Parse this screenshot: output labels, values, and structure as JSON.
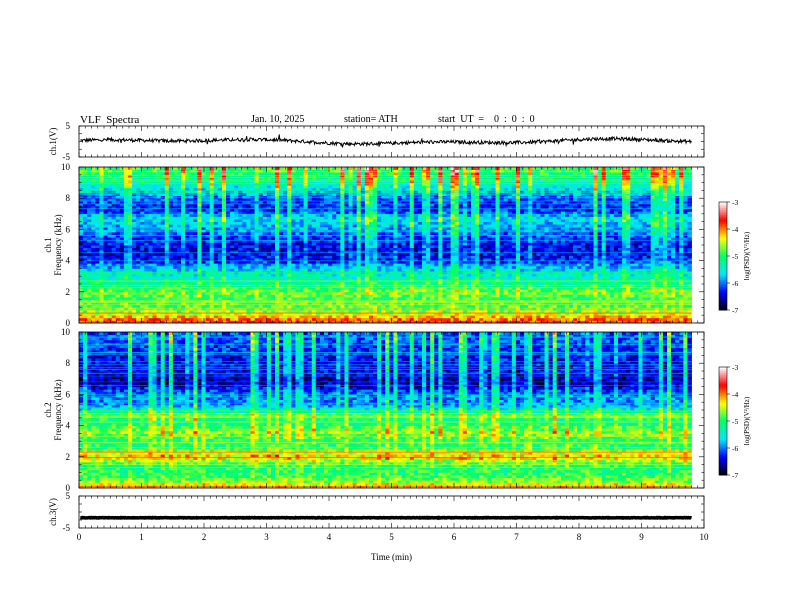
{
  "header": {
    "title": "VLF  Spectra",
    "date": "Jan. 10, 2025",
    "station": "station= ATH",
    "start": "start  UT  =    0  :  0  :  0"
  },
  "chart_data": [
    {
      "id": "ch1",
      "type": "line",
      "ylabel": "ch.1(V)",
      "ylim": [
        -5,
        5
      ],
      "yticks": [
        "5",
        "-5"
      ],
      "xlim": [
        0,
        10
      ],
      "baseline": 0,
      "color": "#000000"
    },
    {
      "id": "spec1",
      "type": "heatmap",
      "ylabel": "ch.1\nFrequency (kHz)",
      "ylabel_lines": [
        "ch.1",
        "Frequency (kHz)"
      ],
      "ylim": [
        0,
        10
      ],
      "yticks": [
        "0",
        "2",
        "4",
        "6",
        "8",
        "10"
      ],
      "xlim": [
        0,
        10
      ],
      "data_end_min": 9.8,
      "colorbar": {
        "label": "log(PSD)(V²/Hz)",
        "range": [
          -7,
          -3
        ],
        "ticks": [
          "-3",
          "-4",
          "-5",
          "-6",
          "-7"
        ],
        "colors": [
          "#000000",
          "#0000ff",
          "#00e5ff",
          "#00ff66",
          "#ffff00",
          "#ff0000",
          "#ffffff"
        ]
      },
      "bands": [
        {
          "f": 0.15,
          "level": -3.8
        },
        {
          "f": 0.4,
          "level": -4.2
        },
        {
          "f": 0.7,
          "level": -4.6
        },
        {
          "f": 1.0,
          "level": -4.8
        },
        {
          "f": 1.5,
          "level": -5.0
        },
        {
          "f": 2.0,
          "level": -4.7
        },
        {
          "f": 2.3,
          "level": -5.0
        },
        {
          "f": 2.9,
          "level": -5.4
        },
        {
          "f": 3.5,
          "level": -5.7
        },
        {
          "f": 4.0,
          "level": -6.3
        },
        {
          "f": 4.7,
          "level": -6.4
        },
        {
          "f": 5.4,
          "level": -6.2
        },
        {
          "f": 6.1,
          "level": -5.9
        },
        {
          "f": 6.7,
          "level": -5.6
        },
        {
          "f": 7.3,
          "level": -6.3
        },
        {
          "f": 8.0,
          "level": -6.1
        },
        {
          "f": 9.0,
          "level": -5.3
        },
        {
          "f": 9.8,
          "level": -4.9
        }
      ]
    },
    {
      "id": "spec2",
      "type": "heatmap",
      "ylabel": "ch.2\nFrequency (kHz)",
      "ylabel_lines": [
        "ch.2",
        "Frequency (kHz)"
      ],
      "ylim": [
        0,
        10
      ],
      "yticks": [
        "0",
        "2",
        "4",
        "6",
        "8",
        "10"
      ],
      "xlim": [
        0,
        10
      ],
      "data_end_min": 9.8,
      "colorbar": {
        "label": "log(PSD)(V²/Hz)",
        "range": [
          -7,
          -3
        ],
        "ticks": [
          "-3",
          "-4",
          "-5",
          "-6",
          "-7"
        ],
        "colors": [
          "#000000",
          "#0000ff",
          "#00e5ff",
          "#00ff66",
          "#ffff00",
          "#ff0000",
          "#ffffff"
        ]
      },
      "bands": [
        {
          "f": 0.2,
          "level": -4.3
        },
        {
          "f": 0.6,
          "level": -4.8
        },
        {
          "f": 1.0,
          "level": -5.0
        },
        {
          "f": 1.5,
          "level": -5.0
        },
        {
          "f": 2.0,
          "level": -4.2
        },
        {
          "f": 2.5,
          "level": -4.9
        },
        {
          "f": 3.0,
          "level": -5.1
        },
        {
          "f": 3.6,
          "level": -4.6
        },
        {
          "f": 4.2,
          "level": -5.2
        },
        {
          "f": 4.7,
          "level": -4.9
        },
        {
          "f": 5.3,
          "level": -5.9
        },
        {
          "f": 6.0,
          "level": -6.0
        },
        {
          "f": 6.8,
          "level": -6.6
        },
        {
          "f": 7.5,
          "level": -6.4
        },
        {
          "f": 8.5,
          "level": -6.3
        },
        {
          "f": 9.5,
          "level": -6.1
        }
      ]
    },
    {
      "id": "ch3",
      "type": "line",
      "ylabel": "ch.3(V)",
      "ylim": [
        -5,
        5
      ],
      "yticks": [
        "5",
        "-5"
      ],
      "xlim": [
        0,
        10
      ],
      "baseline": -1.8,
      "color": "#000000",
      "xlabel": "Time  (min)",
      "xticks": [
        "0",
        "1",
        "2",
        "3",
        "4",
        "5",
        "6",
        "7",
        "8",
        "9",
        "10"
      ]
    }
  ]
}
